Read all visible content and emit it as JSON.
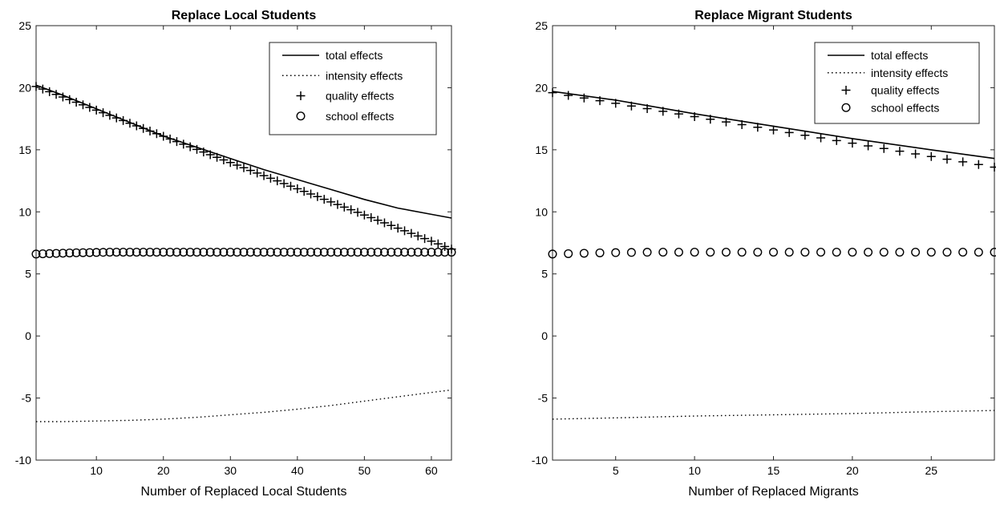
{
  "chart_data": [
    {
      "type": "line",
      "title": "Replace Local Students",
      "xlabel": "Number of Replaced Local Students",
      "ylabel": "",
      "xlim": [
        1,
        63
      ],
      "ylim": [
        -10,
        25
      ],
      "xticks": [
        "10",
        "20",
        "30",
        "40",
        "50",
        "60"
      ],
      "yticks": [
        "-10",
        "-5",
        "0",
        "5",
        "10",
        "15",
        "20",
        "25"
      ],
      "legend_position": "top-right",
      "series": [
        {
          "name": "total effects",
          "style": "solid",
          "x": [
            1,
            5,
            10,
            15,
            20,
            25,
            30,
            35,
            40,
            45,
            50,
            55,
            60,
            63
          ],
          "y": [
            20.2,
            19.4,
            18.3,
            17.2,
            16.1,
            15.2,
            14.3,
            13.4,
            12.6,
            11.8,
            11.0,
            10.3,
            9.8,
            9.5
          ]
        },
        {
          "name": "intensity effects",
          "style": "dotted",
          "x": [
            1,
            5,
            10,
            15,
            20,
            25,
            30,
            35,
            40,
            45,
            50,
            55,
            60,
            63
          ],
          "y": [
            -6.9,
            -6.9,
            -6.85,
            -6.8,
            -6.7,
            -6.55,
            -6.35,
            -6.15,
            -5.9,
            -5.6,
            -5.25,
            -4.9,
            -4.55,
            -4.35
          ]
        },
        {
          "name": "quality effects",
          "style": "plus",
          "x_start": 1,
          "x_end": 63,
          "y_start": 20.1,
          "y_end": 7.0
        },
        {
          "name": "school effects",
          "style": "circle",
          "x_start": 1,
          "x_end": 63,
          "y": [
            6.6,
            6.7,
            6.75,
            6.75,
            6.75,
            6.75,
            6.75,
            6.75,
            6.75,
            6.75,
            6.75,
            6.75
          ]
        }
      ]
    },
    {
      "type": "line",
      "title": "Replace Migrant Students",
      "xlabel": "Number of Replaced Migrants",
      "ylabel": "",
      "xlim": [
        1,
        29
      ],
      "ylim": [
        -10,
        25
      ],
      "xticks": [
        "5",
        "10",
        "15",
        "20",
        "25"
      ],
      "yticks": [
        "-10",
        "-5",
        "0",
        "5",
        "10",
        "15",
        "20",
        "25"
      ],
      "legend_position": "top-right",
      "series": [
        {
          "name": "total effects",
          "style": "solid",
          "x": [
            1,
            5,
            10,
            15,
            20,
            25,
            29
          ],
          "y": [
            19.7,
            19.0,
            17.9,
            16.9,
            15.9,
            15.0,
            14.3
          ]
        },
        {
          "name": "intensity effects",
          "style": "dotted",
          "x": [
            1,
            5,
            10,
            15,
            20,
            25,
            29
          ],
          "y": [
            -6.7,
            -6.6,
            -6.45,
            -6.35,
            -6.25,
            -6.1,
            -6.0
          ]
        },
        {
          "name": "quality effects",
          "style": "plus",
          "x_start": 1,
          "x_end": 29,
          "y_start": 19.6,
          "y_end": 13.6
        },
        {
          "name": "school effects",
          "style": "circle",
          "x_start": 1,
          "x_end": 29,
          "y": [
            6.6,
            6.7,
            6.75,
            6.75,
            6.75,
            6.75,
            6.75,
            6.75,
            6.75,
            6.75
          ]
        }
      ]
    }
  ]
}
